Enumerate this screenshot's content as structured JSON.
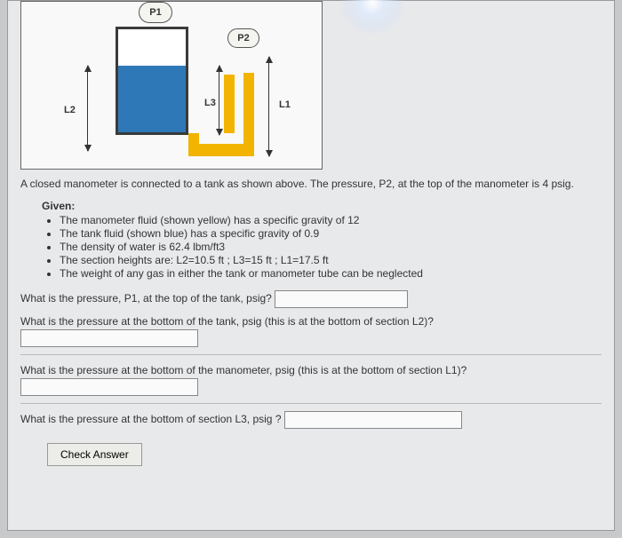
{
  "diagram": {
    "labels": {
      "p1": "P1",
      "p2": "P2",
      "l1": "L1",
      "l2": "L2",
      "l3": "L3"
    },
    "colors": {
      "tank_fluid": "#2f78b8",
      "manometer_fluid": "#f2b400",
      "tank_border": "#3a3a3a",
      "box_border": "#666666",
      "box_bg": "#f9f9f9"
    }
  },
  "description": "A closed manometer is connected to a tank as shown above. The pressure, P2, at the top of the manometer is 4 psig.",
  "given": {
    "title": "Given:",
    "items": [
      "The manometer fluid (shown yellow) has a specific gravity of 12",
      "The tank fluid (shown blue) has a specific gravity of 0.9",
      "The density of water is 62.4 lbm/ft3",
      "The section heights are: L2=10.5 ft ; L3=15 ft ; L1=17.5 ft",
      "The weight of any gas in either the tank or manometer tube can be neglected"
    ]
  },
  "questions": {
    "q1": "What is the pressure, P1, at the top of the tank, psig?",
    "q2": "What is the pressure at the bottom of the tank, psig (this is at the bottom of section L2)?",
    "q3": "What is the pressure at the bottom of the manometer, psig (this is at the bottom of section L1)?",
    "q4": "What is the pressure at the bottom of section L3, psig ?"
  },
  "button": {
    "check": "Check Answer"
  }
}
